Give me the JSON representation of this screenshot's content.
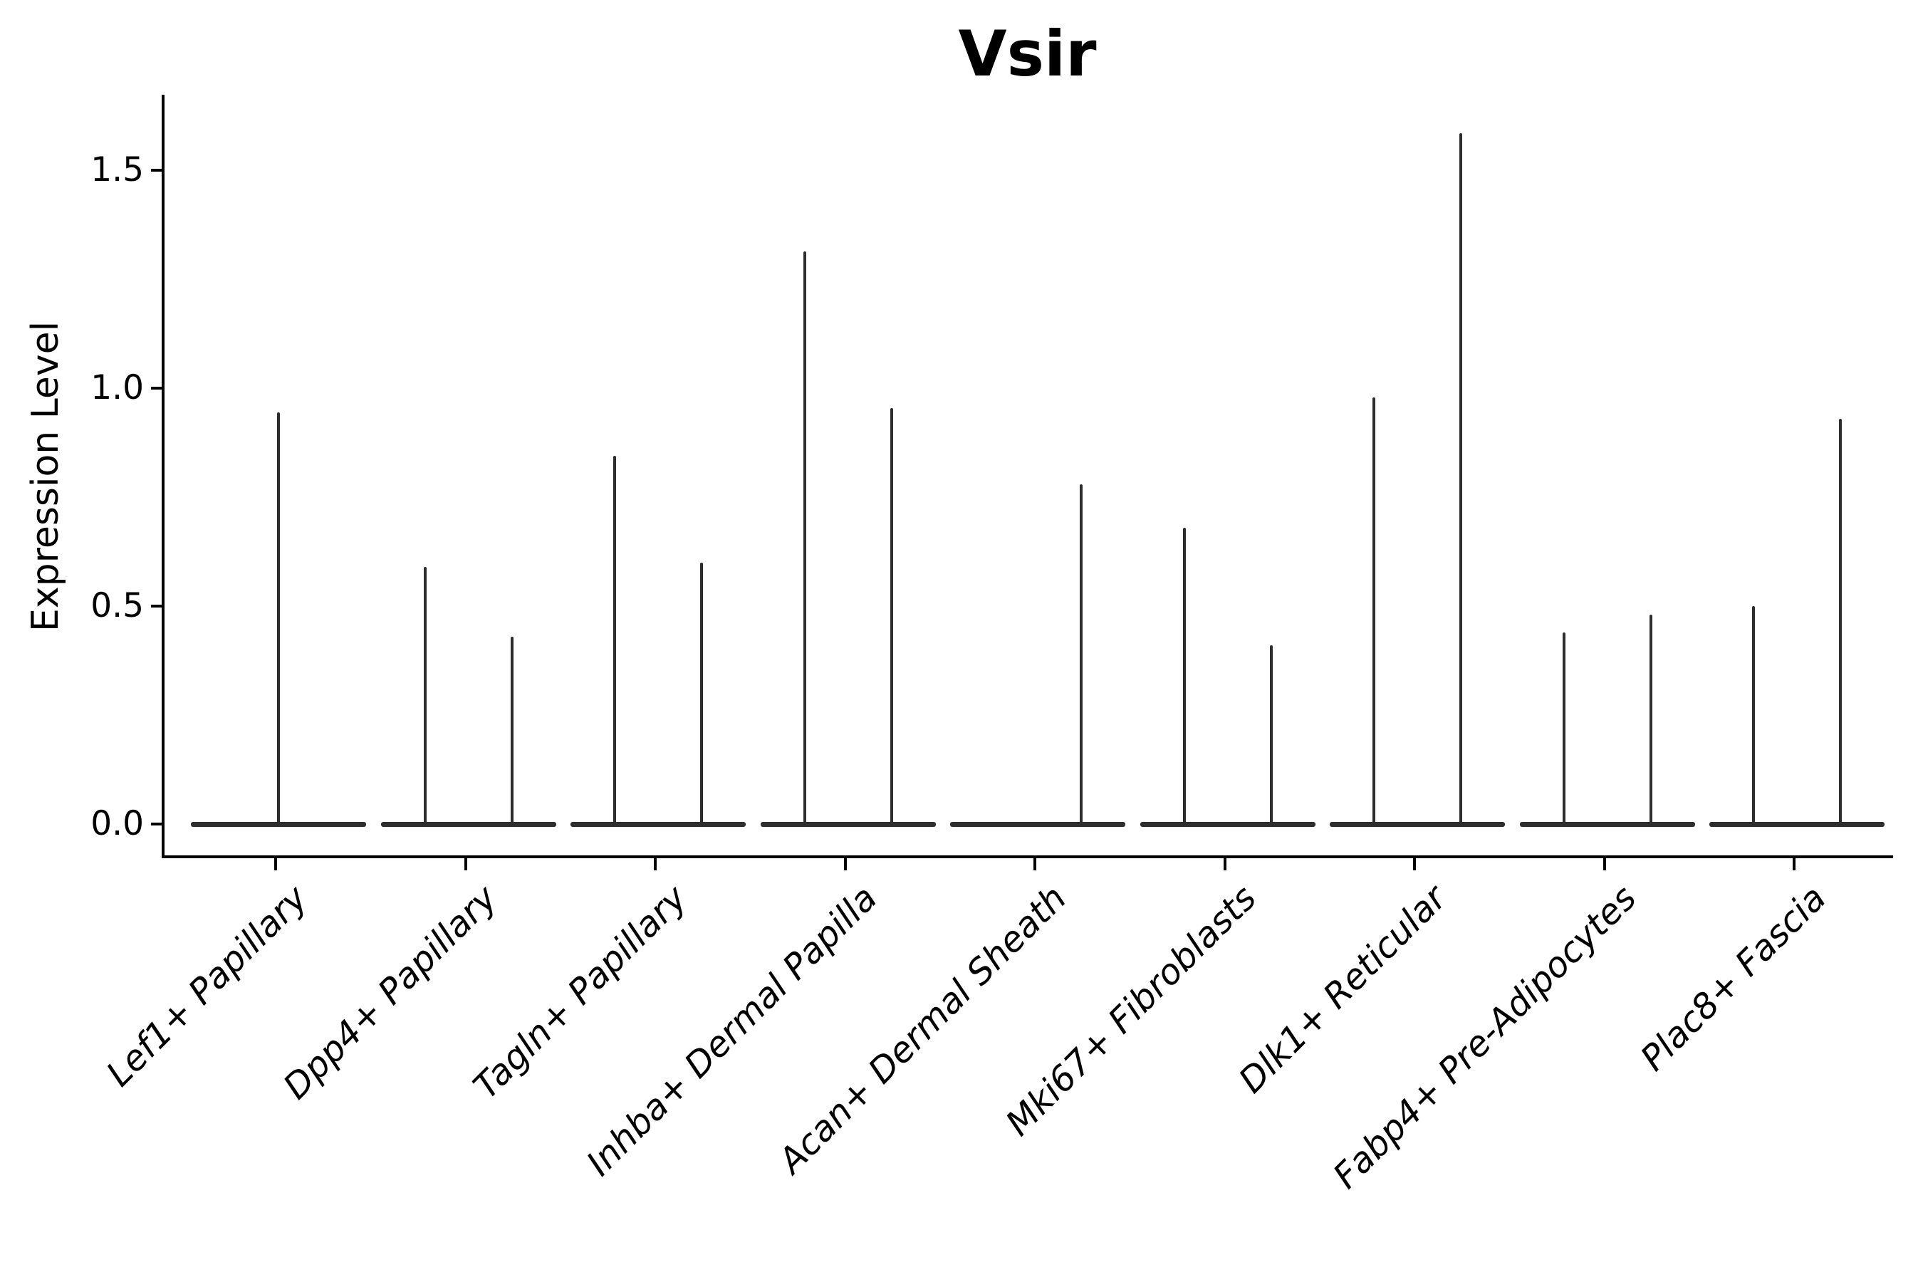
{
  "title": "Vsir",
  "colors": {
    "violin": "#2e2e2e",
    "axis": "#000000",
    "text": "#000000",
    "background": "#ffffff"
  },
  "chart_data": {
    "type": "violin",
    "title": "Vsir",
    "ylabel": "Expression Level",
    "xlabel": "",
    "ylim": [
      -0.072,
      1.674
    ],
    "yticks": [
      0.0,
      0.5,
      1.0,
      1.5
    ],
    "ytick_labels": [
      "0.0",
      "0.5",
      "1.0",
      "1.5"
    ],
    "grid": false,
    "legend": false,
    "x_tick_rotation_deg": 45,
    "x_tick_style": "italic",
    "categories": [
      "Lef1+ Papillary",
      "Dpp4+ Papillary",
      "Tagln+ Papillary",
      "Inhba+ Dermal Papilla",
      "Acan+ Dermal Sheath",
      "Mki67+ Fibroblasts",
      "Dlk1+ Reticular",
      "Fabp4+ Pre-Adipocytes",
      "Plac8+ Fascia"
    ],
    "violins": [
      {
        "category": "Lef1+ Papillary",
        "zero_body": true,
        "spikes": [
          {
            "side": "center",
            "max_expression": 0.945
          }
        ]
      },
      {
        "category": "Dpp4+ Papillary",
        "zero_body": true,
        "spikes": [
          {
            "side": "left",
            "max_expression": 0.59
          },
          {
            "side": "right",
            "max_expression": 0.43
          }
        ]
      },
      {
        "category": "Tagln+ Papillary",
        "zero_body": true,
        "spikes": [
          {
            "side": "left",
            "max_expression": 0.845
          },
          {
            "side": "right",
            "max_expression": 0.6
          }
        ]
      },
      {
        "category": "Inhba+ Dermal Papilla",
        "zero_body": true,
        "spikes": [
          {
            "side": "left",
            "max_expression": 1.315
          },
          {
            "side": "right",
            "max_expression": 0.955
          }
        ]
      },
      {
        "category": "Acan+ Dermal Sheath",
        "zero_body": true,
        "spikes": [
          {
            "side": "right",
            "max_expression": 0.78
          }
        ]
      },
      {
        "category": "Mki67+ Fibroblasts",
        "zero_body": true,
        "spikes": [
          {
            "side": "left",
            "max_expression": 0.68
          },
          {
            "side": "right",
            "max_expression": 0.41
          }
        ]
      },
      {
        "category": "Dlk1+ Reticular",
        "zero_body": true,
        "spikes": [
          {
            "side": "left",
            "max_expression": 0.98
          },
          {
            "side": "right",
            "max_expression": 1.585
          }
        ]
      },
      {
        "category": "Fabp4+ Pre-Adipocytes",
        "zero_body": true,
        "spikes": [
          {
            "side": "left",
            "max_expression": 0.44
          },
          {
            "side": "right",
            "max_expression": 0.48
          }
        ]
      },
      {
        "category": "Plac8+ Fascia",
        "zero_body": true,
        "spikes": [
          {
            "side": "left",
            "max_expression": 0.5
          },
          {
            "side": "right",
            "max_expression": 0.93
          }
        ]
      }
    ]
  }
}
